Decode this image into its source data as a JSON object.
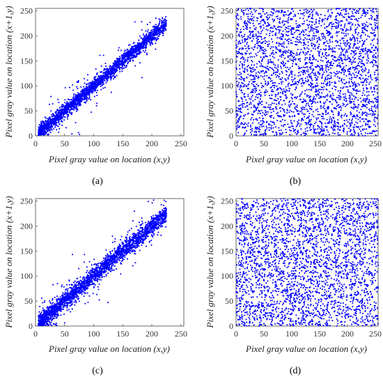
{
  "colors": {
    "marker": "#0000ff",
    "axis": "#444444"
  },
  "chart_data": [
    {
      "type": "scatter",
      "caption": "(a)",
      "xlabel": "Pixel gray value on location (x,y)",
      "ylabel": "Pixel gray value on location (x+1,y)",
      "xlim": [
        0,
        255
      ],
      "ylim": [
        0,
        255
      ],
      "xticks": [
        0,
        50,
        100,
        150,
        200,
        250
      ],
      "yticks": [
        0,
        50,
        100,
        150,
        200,
        250
      ],
      "distribution": "correlated",
      "n_points": 2600,
      "range": [
        5,
        225
      ],
      "spread": 7
    },
    {
      "type": "scatter",
      "caption": "(b)",
      "xlabel": "Pixel gray value on location (x,y)",
      "ylabel": "Pixel gray value on location (x+1,y)",
      "xlim": [
        0,
        255
      ],
      "ylim": [
        0,
        255
      ],
      "xticks": [
        0,
        50,
        100,
        150,
        200,
        250
      ],
      "yticks": [
        0,
        50,
        100,
        150,
        200,
        250
      ],
      "distribution": "uniform",
      "n_points": 3000,
      "range": [
        0,
        255
      ]
    },
    {
      "type": "scatter",
      "caption": "(c)",
      "xlabel": "Pixel gray value on location (x,y)",
      "ylabel": "Pixel gray value on location (x+1,y)",
      "xlim": [
        0,
        255
      ],
      "ylim": [
        0,
        255
      ],
      "xticks": [
        0,
        50,
        100,
        150,
        200,
        250
      ],
      "yticks": [
        0,
        50,
        100,
        150,
        200,
        250
      ],
      "distribution": "correlated",
      "n_points": 2600,
      "range": [
        5,
        225
      ],
      "spread": 9
    },
    {
      "type": "scatter",
      "caption": "(d)",
      "xlabel": "Pixel gray value on location (x,y)",
      "ylabel": "Pixel gray value on location (x+1,y)",
      "xlim": [
        0,
        255
      ],
      "ylim": [
        0,
        255
      ],
      "xticks": [
        0,
        50,
        100,
        150,
        200,
        250
      ],
      "yticks": [
        0,
        50,
        100,
        150,
        200,
        250
      ],
      "distribution": "uniform",
      "n_points": 3000,
      "range": [
        0,
        255
      ]
    }
  ]
}
